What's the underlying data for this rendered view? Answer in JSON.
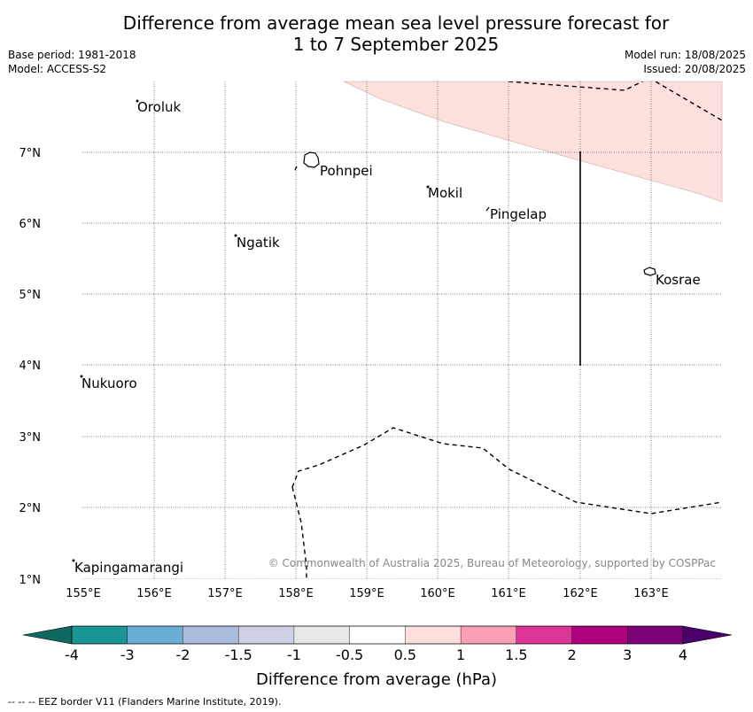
{
  "title_line1": "Difference from average mean sea level pressure forecast for",
  "title_line2": "1 to 7 September 2025",
  "base_period": "Base period: 1981-2018",
  "model": "Model: ACCESS-S2",
  "model_run": "Model run: 18/08/2025",
  "issued": "Issued: 20/08/2025",
  "copyright": "© Commonwealth of Australia 2025, Bureau of Meteorology, supported by COSPPac",
  "footer": "--  --  -- EEZ border V11 (Flanders Marine Institute, 2019).",
  "map": {
    "lon_labels": [
      "155°E",
      "156°E",
      "157°E",
      "158°E",
      "159°E",
      "160°E",
      "161°E",
      "162°E",
      "163°E"
    ],
    "lat_labels": [
      "7°N",
      "6°N",
      "5°N",
      "4°N",
      "3°N",
      "2°N",
      "1°N"
    ],
    "places": [
      {
        "name": "Oroluk",
        "lon": 155.75,
        "lat": 7.72
      },
      {
        "name": "Pohnpei",
        "lon": 158.25,
        "lat": 6.88
      },
      {
        "name": "Mokil",
        "lon": 159.85,
        "lat": 6.52
      },
      {
        "name": "Pingelap",
        "lon": 160.75,
        "lat": 6.22
      },
      {
        "name": "Ngatik",
        "lon": 157.15,
        "lat": 5.82
      },
      {
        "name": "Kosrae",
        "lon": 162.98,
        "lat": 5.33
      },
      {
        "name": "Nukuoro",
        "lon": 154.95,
        "lat": 3.85
      },
      {
        "name": "Kapingamarangi",
        "lon": 154.85,
        "lat": 1.08
      }
    ],
    "anomaly_region": {
      "label": "0.5",
      "color": "#fde0dd"
    }
  },
  "colorbar": {
    "title": "Difference from average (hPa)",
    "tick_labels": [
      "-4",
      "-3",
      "-2",
      "-1.5",
      "-1",
      "-0.5",
      "0.5",
      "1",
      "1.5",
      "2",
      "3",
      "4"
    ],
    "colors": [
      "#1a9696",
      "#6aaed6",
      "#a9bcdc",
      "#cfd0e6",
      "#e8e8e8",
      "#ffffff",
      "#fde0dd",
      "#fa9fb5",
      "#dd3497",
      "#ae017e",
      "#7a0177"
    ],
    "under_color": "#0e6a60",
    "over_color": "#49006a"
  }
}
